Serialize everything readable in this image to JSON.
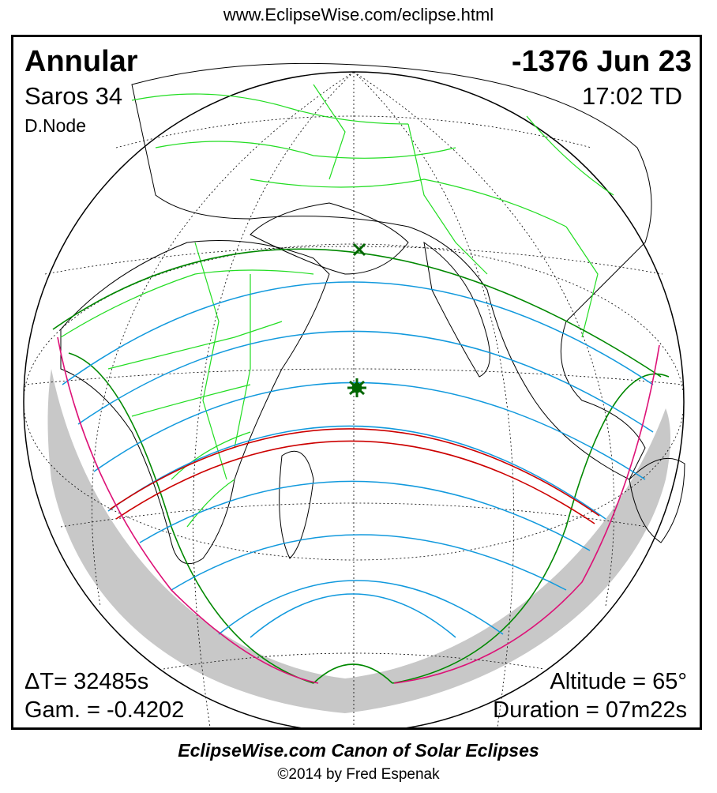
{
  "header": {
    "url": "www.EclipseWise.com/eclipse.html"
  },
  "eclipse": {
    "type": "Annular",
    "saros": "Saros  34",
    "node": "D.Node",
    "date": "-1376 Jun 23",
    "time": "17:02 TD",
    "delta_t": "ΔT=  32485s",
    "gamma": "Gam. = -0.4202",
    "altitude": "Altitude = 65°",
    "duration": "Duration = 07m22s"
  },
  "footer": {
    "canon": "EclipseWise.com Canon of Solar Eclipses",
    "copyright": "©2014 by Fred Espenak"
  },
  "map_colors": {
    "land_outline": "#000000",
    "borders": "#22dd22",
    "central_path": "#cc0000",
    "partial_limits": "#008800",
    "magnitude_lines": "#1199dd",
    "rise_set_curves": "#dd1177",
    "night_shading": "#c8c8c8",
    "markers": "#006600"
  }
}
